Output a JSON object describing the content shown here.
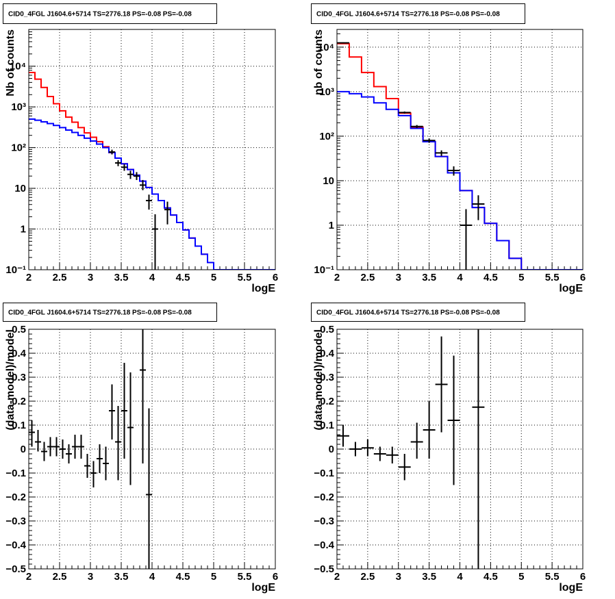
{
  "chart_data": [
    {
      "type": "line",
      "title": "CID0_4FGL J1604.6+5714 TS=2776.18 PS=-0.08 PS=-0.08",
      "xlabel": "logE",
      "ylabel": "Nb of counts",
      "scale": "log",
      "xlim": [
        2,
        6
      ],
      "ylim": [
        0.1,
        80000
      ],
      "x_ticks": [
        "2",
        "2.5",
        "3",
        "3.5",
        "4",
        "4.5",
        "5",
        "5.5",
        "6"
      ],
      "y_ticks": [
        "10⁻¹",
        "1",
        "10",
        "10²",
        "10³",
        "10⁴"
      ],
      "grid": true,
      "bin_edges": [
        2.0,
        2.1,
        2.2,
        2.3,
        2.4,
        2.5,
        2.6,
        2.7,
        2.8,
        2.9,
        3.0,
        3.1,
        3.2,
        3.3,
        3.4,
        3.5,
        3.6,
        3.7,
        3.8,
        3.9,
        4.0,
        4.1,
        4.2,
        4.3,
        4.4,
        4.5,
        4.6,
        4.7,
        4.8,
        4.9,
        5.0,
        5.1,
        5.2,
        5.3,
        5.4,
        5.5,
        5.6,
        5.7,
        5.8,
        5.9,
        6.0
      ],
      "series": [
        {
          "style": "step",
          "color": "#ff0000",
          "values": [
            7000,
            4800,
            3000,
            1800,
            1200,
            800,
            560,
            420,
            310,
            230,
            180,
            140,
            105,
            75,
            55,
            40,
            29,
            21,
            15,
            10.5,
            7.2,
            5,
            3.3,
            2.2,
            1.45,
            0.95,
            0.6,
            0.38,
            0.24,
            0.15,
            0.1,
            0.1,
            0.1,
            0.1,
            0.1,
            0.1,
            0.1,
            0.1,
            0.1,
            0.1
          ]
        },
        {
          "style": "step",
          "color": "#0000ff",
          "values": [
            500,
            470,
            430,
            390,
            350,
            310,
            270,
            235,
            200,
            170,
            145,
            122,
            100,
            76,
            55,
            40,
            29,
            21,
            15,
            10.5,
            7.2,
            5,
            3.3,
            2.2,
            1.45,
            0.95,
            0.6,
            0.38,
            0.24,
            0.15,
            0.1,
            0.1,
            0.1,
            0.1,
            0.1,
            0.1,
            0.1,
            0.1,
            0.1,
            0.1
          ]
        },
        {
          "style": "errorbar",
          "color": "#000000",
          "points": [
            {
              "x": 3.35,
              "xerr": 0.05,
              "y": 78,
              "lo": 68,
              "hi": 89
            },
            {
              "x": 3.45,
              "xerr": 0.05,
              "y": 42,
              "lo": 35,
              "hi": 49
            },
            {
              "x": 3.55,
              "xerr": 0.05,
              "y": 33,
              "lo": 27,
              "hi": 39
            },
            {
              "x": 3.65,
              "xerr": 0.05,
              "y": 22,
              "lo": 17,
              "hi": 27
            },
            {
              "x": 3.75,
              "xerr": 0.05,
              "y": 20,
              "lo": 16,
              "hi": 25
            },
            {
              "x": 3.85,
              "xerr": 0.05,
              "y": 12,
              "lo": 9,
              "hi": 16
            },
            {
              "x": 3.95,
              "xerr": 0.05,
              "y": 5,
              "lo": 3,
              "hi": 7
            },
            {
              "x": 4.05,
              "xerr": 0.05,
              "y": 1,
              "lo": 0.1,
              "hi": 2.3
            },
            {
              "x": 4.25,
              "xerr": 0.05,
              "y": 3,
              "lo": 1.3,
              "hi": 4.7
            }
          ]
        }
      ]
    },
    {
      "type": "line",
      "title": "CID0_4FGL J1604.6+5714 TS=2776.18 PS=-0.08 PS=-0.08",
      "xlabel": "logE",
      "ylabel": "nb of counts",
      "scale": "log",
      "xlim": [
        2,
        6
      ],
      "ylim": [
        0.1,
        25000
      ],
      "x_ticks": [
        "2",
        "2.5",
        "3",
        "3.5",
        "4",
        "4.5",
        "5",
        "5.5",
        "6"
      ],
      "y_ticks": [
        "10⁻¹",
        "1",
        "10",
        "10²",
        "10³",
        "10⁴"
      ],
      "grid": true,
      "bin_edges": [
        2.0,
        2.2,
        2.4,
        2.6,
        2.8,
        3.0,
        3.2,
        3.4,
        3.6,
        3.8,
        4.0,
        4.2,
        4.4,
        4.6,
        4.8,
        5.0,
        5.2,
        5.4,
        5.6,
        5.8,
        6.0
      ],
      "series": [
        {
          "style": "step",
          "color": "#ff0000",
          "values": [
            12000,
            6000,
            2700,
            1300,
            700,
            330,
            160,
            75,
            35,
            15,
            6,
            2.5,
            1.1,
            0.45,
            0.18,
            0.1,
            0.1,
            0.1,
            0.1,
            0.1
          ]
        },
        {
          "style": "step",
          "color": "#0000ff",
          "values": [
            1000,
            900,
            760,
            560,
            400,
            290,
            150,
            75,
            35,
            15,
            6,
            2.5,
            1.1,
            0.45,
            0.18,
            0.1,
            0.1,
            0.1,
            0.1,
            0.1
          ]
        },
        {
          "style": "errorbar",
          "color": "#000000",
          "points": [
            {
              "x": 2.1,
              "xerr": 0.1,
              "y": 12500,
              "lo": 12200,
              "hi": 12800
            },
            {
              "x": 3.1,
              "xerr": 0.1,
              "y": 340,
              "lo": 322,
              "hi": 358
            },
            {
              "x": 3.3,
              "xerr": 0.1,
              "y": 165,
              "lo": 152,
              "hi": 178
            },
            {
              "x": 3.5,
              "xerr": 0.1,
              "y": 80,
              "lo": 71,
              "hi": 89
            },
            {
              "x": 3.7,
              "xerr": 0.1,
              "y": 42,
              "lo": 36,
              "hi": 48
            },
            {
              "x": 3.9,
              "xerr": 0.1,
              "y": 17,
              "lo": 13,
              "hi": 21
            },
            {
              "x": 4.1,
              "xerr": 0.1,
              "y": 1,
              "lo": 0.1,
              "hi": 2.3
            },
            {
              "x": 4.3,
              "xerr": 0.1,
              "y": 3,
              "lo": 1.3,
              "hi": 4.7
            }
          ]
        }
      ]
    },
    {
      "type": "scatter",
      "title": "CID0_4FGL J1604.6+5714 TS=2776.18 PS=-0.08 PS=-0.08",
      "xlabel": "logE",
      "ylabel": "(data-model)/model",
      "scale": "linear",
      "xlim": [
        2,
        6
      ],
      "ylim": [
        -0.5,
        0.5
      ],
      "x_ticks": [
        "2",
        "2.5",
        "3",
        "3.5",
        "4",
        "4.5",
        "5",
        "5.5",
        "6"
      ],
      "y_ticks": [
        "−0.5",
        "−0.4",
        "−0.3",
        "−0.2",
        "−0.1",
        "0",
        "0.1",
        "0.2",
        "0.3",
        "0.4",
        "0.5"
      ],
      "grid": true,
      "series": [
        {
          "style": "errorbar",
          "color": "#000000",
          "points": [
            {
              "x": 2.05,
              "xerr": 0.05,
              "y": 0.07,
              "lo": 0.01,
              "hi": 0.12
            },
            {
              "x": 2.15,
              "xerr": 0.05,
              "y": 0.03,
              "lo": -0.01,
              "hi": 0.08
            },
            {
              "x": 2.25,
              "xerr": 0.05,
              "y": -0.01,
              "lo": -0.05,
              "hi": 0.03
            },
            {
              "x": 2.35,
              "xerr": 0.05,
              "y": 0.01,
              "lo": -0.03,
              "hi": 0.05
            },
            {
              "x": 2.45,
              "xerr": 0.05,
              "y": 0.01,
              "lo": -0.03,
              "hi": 0.05
            },
            {
              "x": 2.55,
              "xerr": 0.05,
              "y": 0.0,
              "lo": -0.04,
              "hi": 0.04
            },
            {
              "x": 2.65,
              "xerr": 0.05,
              "y": -0.02,
              "lo": -0.06,
              "hi": 0.02
            },
            {
              "x": 2.75,
              "xerr": 0.05,
              "y": 0.01,
              "lo": -0.04,
              "hi": 0.06
            },
            {
              "x": 2.85,
              "xerr": 0.05,
              "y": 0.01,
              "lo": -0.04,
              "hi": 0.06
            },
            {
              "x": 2.95,
              "xerr": 0.05,
              "y": -0.07,
              "lo": -0.12,
              "hi": -0.02
            },
            {
              "x": 3.05,
              "xerr": 0.05,
              "y": -0.1,
              "lo": -0.16,
              "hi": -0.05
            },
            {
              "x": 3.15,
              "xerr": 0.05,
              "y": -0.04,
              "lo": -0.1,
              "hi": 0.02
            },
            {
              "x": 3.25,
              "xerr": 0.05,
              "y": -0.06,
              "lo": -0.13,
              "hi": 0.01
            },
            {
              "x": 3.35,
              "xerr": 0.05,
              "y": 0.16,
              "lo": 0.04,
              "hi": 0.27
            },
            {
              "x": 3.45,
              "xerr": 0.05,
              "y": 0.03,
              "lo": -0.13,
              "hi": 0.18
            },
            {
              "x": 3.55,
              "xerr": 0.05,
              "y": 0.16,
              "lo": -0.04,
              "hi": 0.36
            },
            {
              "x": 3.65,
              "xerr": 0.05,
              "y": 0.09,
              "lo": -0.15,
              "hi": 0.32
            },
            {
              "x": 3.85,
              "xerr": 0.05,
              "y": 0.33,
              "lo": -0.06,
              "hi": 0.5
            },
            {
              "x": 3.95,
              "xerr": 0.05,
              "y": -0.19,
              "lo": -0.5,
              "hi": 0.17
            }
          ]
        }
      ]
    },
    {
      "type": "scatter",
      "title": "CID0_4FGL J1604.6+5714 TS=2776.18 PS=-0.08 PS=-0.08",
      "xlabel": "logE",
      "ylabel": "(data-model)/model",
      "scale": "linear",
      "xlim": [
        2,
        6
      ],
      "ylim": [
        -0.5,
        0.5
      ],
      "x_ticks": [
        "2",
        "2.5",
        "3",
        "3.5",
        "4",
        "4.5",
        "5",
        "5.5",
        "6"
      ],
      "y_ticks": [
        "−0.5",
        "−0.4",
        "−0.3",
        "−0.2",
        "−0.1",
        "0",
        "0.1",
        "0.2",
        "0.3",
        "0.4",
        "0.5"
      ],
      "grid": true,
      "series": [
        {
          "style": "errorbar",
          "color": "#000000",
          "points": [
            {
              "x": 2.1,
              "xerr": 0.1,
              "y": 0.055,
              "lo": 0.01,
              "hi": 0.1
            },
            {
              "x": 2.3,
              "xerr": 0.1,
              "y": 0.0,
              "lo": -0.03,
              "hi": 0.03
            },
            {
              "x": 2.5,
              "xerr": 0.1,
              "y": 0.005,
              "lo": -0.03,
              "hi": 0.04
            },
            {
              "x": 2.7,
              "xerr": 0.1,
              "y": -0.02,
              "lo": -0.05,
              "hi": 0.01
            },
            {
              "x": 2.9,
              "xerr": 0.1,
              "y": -0.025,
              "lo": -0.06,
              "hi": 0.01
            },
            {
              "x": 3.1,
              "xerr": 0.1,
              "y": -0.075,
              "lo": -0.13,
              "hi": -0.02
            },
            {
              "x": 3.3,
              "xerr": 0.1,
              "y": 0.03,
              "lo": -0.04,
              "hi": 0.11
            },
            {
              "x": 3.5,
              "xerr": 0.1,
              "y": 0.08,
              "lo": -0.04,
              "hi": 0.2
            },
            {
              "x": 3.7,
              "xerr": 0.1,
              "y": 0.27,
              "lo": 0.07,
              "hi": 0.47
            },
            {
              "x": 3.9,
              "xerr": 0.1,
              "y": 0.12,
              "lo": -0.15,
              "hi": 0.39
            },
            {
              "x": 4.3,
              "xerr": 0.1,
              "y": 0.175,
              "lo": -0.5,
              "hi": 0.5
            }
          ]
        }
      ]
    }
  ]
}
